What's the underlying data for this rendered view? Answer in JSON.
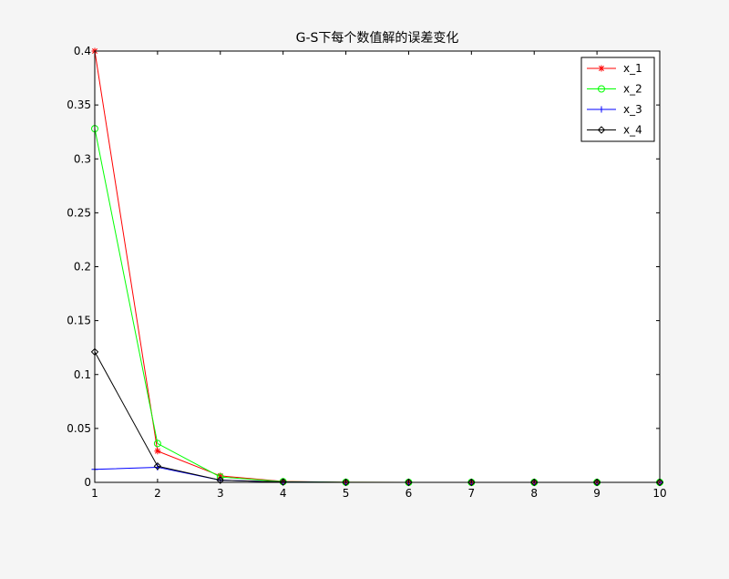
{
  "chart_data": {
    "type": "line",
    "title": "G-S下每个数值解的误差变化",
    "xlabel": "",
    "ylabel": "",
    "x": [
      1,
      2,
      3,
      4,
      5,
      6,
      7,
      8,
      9,
      10
    ],
    "xlim": [
      1,
      10
    ],
    "ylim": [
      0,
      0.4
    ],
    "xticks": [
      "1",
      "2",
      "3",
      "4",
      "5",
      "6",
      "7",
      "8",
      "9",
      "10"
    ],
    "yticks": [
      "0",
      "0.05",
      "0.1",
      "0.15",
      "0.2",
      "0.25",
      "0.3",
      "0.35",
      "0.4"
    ],
    "grid": false,
    "legend_position": "top-right",
    "series": [
      {
        "name": "x_1",
        "color": "#ff0000",
        "marker": "asterisk",
        "values": [
          0.4,
          0.029,
          0.006,
          0.0008,
          0.0001,
          1e-05,
          0,
          0,
          0,
          0
        ]
      },
      {
        "name": "x_2",
        "color": "#00ff00",
        "marker": "circle",
        "values": [
          0.328,
          0.036,
          0.005,
          0.0006,
          0.0001,
          1e-05,
          0,
          0,
          0,
          0
        ]
      },
      {
        "name": "x_3",
        "color": "#0000ff",
        "marker": "plus",
        "values": [
          0.012,
          0.014,
          0.002,
          0.0003,
          4e-05,
          0,
          0,
          0,
          0,
          0
        ]
      },
      {
        "name": "x_4",
        "color": "#000000",
        "marker": "diamond",
        "values": [
          0.121,
          0.015,
          0.002,
          0.0003,
          4e-05,
          0,
          0,
          0,
          0,
          0
        ]
      }
    ]
  }
}
